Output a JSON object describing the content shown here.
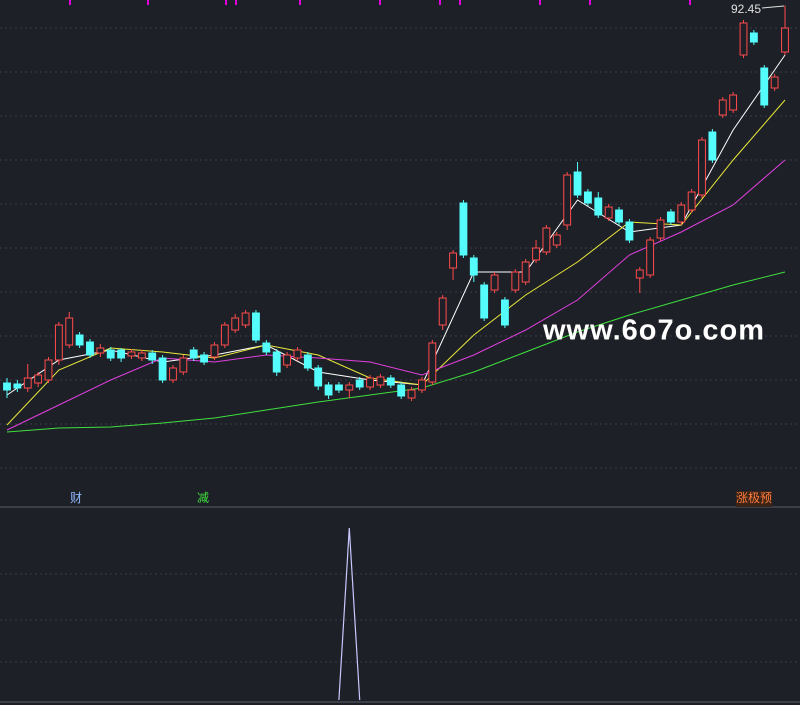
{
  "chart_data": {
    "type": "candlestick",
    "ylim": [
      43,
      93
    ],
    "up_color": "#ff4b4b",
    "down_color": "#54fcfc",
    "open": [
      54.7,
      54.6,
      54.2,
      54.7,
      55.0,
      57.0,
      58.5,
      59.5,
      58.8,
      57.7,
      58.0,
      58.0,
      57.4,
      57.2,
      57.7,
      57.2,
      55.0,
      55.8,
      58.0,
      57.5,
      57.3,
      58.5,
      60.0,
      60.5,
      61.7,
      58.7,
      57.8,
      56.5,
      57.2,
      57.5,
      56.2,
      54.5,
      54.5,
      54.0,
      55.0,
      54.3,
      54.5,
      55.2,
      54.5,
      53.2,
      54.0,
      54.8,
      60.5,
      66.2,
      72.7,
      67.2,
      64.5,
      64.0,
      63.0,
      64.0,
      64.8,
      67.0,
      67.8,
      68.5,
      70.5,
      75.8,
      73.8,
      73.2,
      71.2,
      72.0,
      70.8,
      65.2,
      65.5,
      69.2,
      71.8,
      70.8,
      72.0,
      73.5,
      79.8,
      81.5,
      82.0,
      87.5,
      89.7,
      86.2,
      84.2,
      87.8
    ],
    "high": [
      55.2,
      55.0,
      56.6,
      55.8,
      57.3,
      60.8,
      61.8,
      59.8,
      59.1,
      58.6,
      58.3,
      58.2,
      58.1,
      58.0,
      58.0,
      57.5,
      56.5,
      57.5,
      58.3,
      57.8,
      58.8,
      60.8,
      61.6,
      62.0,
      62.0,
      59.0,
      58.1,
      57.8,
      58.3,
      57.8,
      56.5,
      54.8,
      54.8,
      54.8,
      55.3,
      55.5,
      55.6,
      55.5,
      54.8,
      54.3,
      55.3,
      59.0,
      63.5,
      68.0,
      73.0,
      67.5,
      64.8,
      65.8,
      63.3,
      66.1,
      67.1,
      69.0,
      70.5,
      69.8,
      75.8,
      76.8,
      74.1,
      73.8,
      72.6,
      72.3,
      71.1,
      66.3,
      69.3,
      71.3,
      72.1,
      72.8,
      74.1,
      79.3,
      80.1,
      83.3,
      83.8,
      91.0,
      90.0,
      86.5,
      85.6,
      92.45
    ],
    "low": [
      53.2,
      53.8,
      53.8,
      54.3,
      54.7,
      56.5,
      58.2,
      58.2,
      57.2,
      57.3,
      56.9,
      56.8,
      57.1,
      56.9,
      56.6,
      54.7,
      54.7,
      55.5,
      56.9,
      56.5,
      57.0,
      58.2,
      59.7,
      60.2,
      58.7,
      57.5,
      55.4,
      56.2,
      56.9,
      55.9,
      54.0,
      53.1,
      53.7,
      53.2,
      54.0,
      54.0,
      54.2,
      54.2,
      53.1,
      52.9,
      53.7,
      54.5,
      60.0,
      65.0,
      67.2,
      64.8,
      60.9,
      63.7,
      60.2,
      63.7,
      64.5,
      66.7,
      67.5,
      68.2,
      70.0,
      73.2,
      72.4,
      71.2,
      70.9,
      70.5,
      68.7,
      63.7,
      65.2,
      68.9,
      70.5,
      70.5,
      71.7,
      73.2,
      76.7,
      81.2,
      81.7,
      87.2,
      88.5,
      82.2,
      83.9,
      87.5
    ],
    "close": [
      54.0,
      54.2,
      55.2,
      55.5,
      57.0,
      60.5,
      61.2,
      58.5,
      57.5,
      58.2,
      57.2,
      57.2,
      57.8,
      57.7,
      57.0,
      55.0,
      56.2,
      57.2,
      57.2,
      56.8,
      58.5,
      60.5,
      61.2,
      61.7,
      59.0,
      57.8,
      55.8,
      57.5,
      58.0,
      56.2,
      54.4,
      53.5,
      54.0,
      54.5,
      54.3,
      55.2,
      55.3,
      54.5,
      53.4,
      54.0,
      55.0,
      58.7,
      63.2,
      67.7,
      67.5,
      65.5,
      61.2,
      65.5,
      60.5,
      65.8,
      66.8,
      68.2,
      70.2,
      69.5,
      75.5,
      73.5,
      72.7,
      71.5,
      72.3,
      70.8,
      69.0,
      66.0,
      69.0,
      71.0,
      70.8,
      72.5,
      73.8,
      79.0,
      77.0,
      83.0,
      83.5,
      90.7,
      88.8,
      82.5,
      85.3,
      90.2
    ],
    "ma": [
      {
        "color": "#ffffff",
        "x": [
          0,
          5,
          10,
          15,
          20,
          25,
          30,
          35,
          40,
          45,
          50,
          55,
          60,
          65,
          70,
          75
        ],
        "values": [
          53.5,
          57.0,
          58.0,
          56.8,
          57.5,
          58.5,
          55.8,
          55.0,
          54.5,
          65.8,
          65.8,
          73.0,
          69.8,
          70.5,
          80.0,
          87.5
        ]
      },
      {
        "color": "#e8e83a",
        "x": [
          0,
          5,
          10,
          15,
          20,
          25,
          30,
          35,
          40,
          45,
          50,
          55,
          60,
          65,
          70,
          75
        ],
        "values": [
          50.5,
          56.0,
          58.2,
          57.8,
          57.2,
          58.5,
          57.5,
          55.2,
          54.5,
          59.5,
          63.5,
          66.8,
          70.8,
          70.5,
          77.0,
          83.0
        ]
      },
      {
        "color": "#e040e0",
        "x": [
          0,
          5,
          10,
          15,
          20,
          25,
          30,
          35,
          40,
          45,
          50,
          55,
          60,
          65,
          70,
          75
        ],
        "values": [
          50.0,
          52.5,
          55.0,
          57.2,
          56.8,
          57.5,
          57.2,
          56.8,
          55.5,
          57.5,
          60.0,
          63.0,
          67.5,
          69.8,
          72.5,
          77.0
        ]
      },
      {
        "color": "#3ee03e",
        "x": [
          0,
          5,
          10,
          15,
          20,
          25,
          30,
          35,
          40,
          45,
          50,
          55,
          60,
          65,
          70,
          75
        ],
        "values": [
          49.8,
          50.2,
          50.3,
          50.7,
          51.2,
          52.0,
          52.8,
          53.5,
          54.2,
          55.8,
          57.8,
          59.8,
          61.5,
          63.0,
          64.5,
          65.8
        ]
      }
    ],
    "annotations": [
      "财",
      "减",
      "涨极预"
    ],
    "watermark": "www.6o7o.com",
    "indicator": {
      "color": "#c8c8ff",
      "ylim": [
        0,
        1
      ],
      "x": [
        32,
        33,
        34
      ],
      "values": [
        0,
        1,
        0
      ]
    }
  }
}
